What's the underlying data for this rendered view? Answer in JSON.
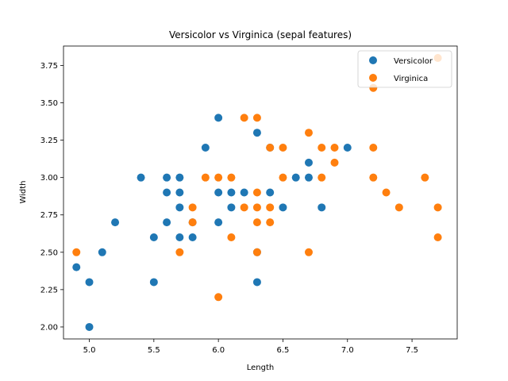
{
  "chart_data": {
    "type": "scatter",
    "title": "Versicolor vs Virginica (sepal features)",
    "xlabel": "Length",
    "ylabel": "Width",
    "xlim": [
      4.8,
      7.85
    ],
    "ylim": [
      1.92,
      3.88
    ],
    "xticks": [
      5.0,
      5.5,
      6.0,
      6.5,
      7.0,
      7.5
    ],
    "xtick_labels": [
      "5.0",
      "5.5",
      "6.0",
      "6.5",
      "7.0",
      "7.5"
    ],
    "yticks": [
      2.0,
      2.25,
      2.5,
      2.75,
      3.0,
      3.25,
      3.5,
      3.75
    ],
    "ytick_labels": [
      "2.00",
      "2.25",
      "2.50",
      "2.75",
      "3.00",
      "3.25",
      "3.50",
      "3.75"
    ],
    "grid": false,
    "legend_position": "top-right",
    "series": [
      {
        "name": "Versicolor",
        "color": "#1f77b4",
        "points": [
          [
            4.9,
            2.4
          ],
          [
            5.0,
            2.0
          ],
          [
            5.0,
            2.3
          ],
          [
            5.1,
            2.5
          ],
          [
            5.2,
            2.7
          ],
          [
            5.4,
            3.0
          ],
          [
            5.5,
            2.3
          ],
          [
            5.5,
            2.6
          ],
          [
            5.6,
            2.7
          ],
          [
            5.6,
            2.9
          ],
          [
            5.6,
            3.0
          ],
          [
            5.7,
            2.6
          ],
          [
            5.7,
            2.8
          ],
          [
            5.7,
            2.9
          ],
          [
            5.7,
            3.0
          ],
          [
            5.8,
            2.6
          ],
          [
            5.8,
            2.7
          ],
          [
            5.9,
            3.2
          ],
          [
            6.0,
            2.7
          ],
          [
            6.0,
            2.9
          ],
          [
            6.0,
            3.4
          ],
          [
            6.1,
            2.8
          ],
          [
            6.1,
            2.9
          ],
          [
            6.2,
            2.9
          ],
          [
            6.3,
            2.3
          ],
          [
            6.3,
            2.5
          ],
          [
            6.3,
            3.3
          ],
          [
            6.4,
            2.9
          ],
          [
            6.4,
            3.2
          ],
          [
            6.5,
            2.8
          ],
          [
            6.6,
            3.0
          ],
          [
            6.7,
            3.0
          ],
          [
            6.7,
            3.1
          ],
          [
            6.8,
            2.8
          ],
          [
            7.0,
            3.2
          ]
        ]
      },
      {
        "name": "Virginica",
        "color": "#ff7f0e",
        "points": [
          [
            4.9,
            2.5
          ],
          [
            5.7,
            2.5
          ],
          [
            5.8,
            2.7
          ],
          [
            5.8,
            2.8
          ],
          [
            5.9,
            3.0
          ],
          [
            6.0,
            2.2
          ],
          [
            6.0,
            3.0
          ],
          [
            6.1,
            2.6
          ],
          [
            6.1,
            3.0
          ],
          [
            6.2,
            2.8
          ],
          [
            6.2,
            3.4
          ],
          [
            6.3,
            2.5
          ],
          [
            6.3,
            2.7
          ],
          [
            6.3,
            2.8
          ],
          [
            6.3,
            2.9
          ],
          [
            6.3,
            3.4
          ],
          [
            6.4,
            2.7
          ],
          [
            6.4,
            2.8
          ],
          [
            6.4,
            3.2
          ],
          [
            6.5,
            3.0
          ],
          [
            6.5,
            3.2
          ],
          [
            6.7,
            2.5
          ],
          [
            6.7,
            3.3
          ],
          [
            6.8,
            3.0
          ],
          [
            6.8,
            3.2
          ],
          [
            6.9,
            3.1
          ],
          [
            6.9,
            3.2
          ],
          [
            7.2,
            3.0
          ],
          [
            7.2,
            3.2
          ],
          [
            7.2,
            3.6
          ],
          [
            7.3,
            2.9
          ],
          [
            7.4,
            2.8
          ],
          [
            7.6,
            3.0
          ],
          [
            7.7,
            2.6
          ],
          [
            7.7,
            2.8
          ],
          [
            7.7,
            3.8
          ]
        ]
      }
    ]
  }
}
